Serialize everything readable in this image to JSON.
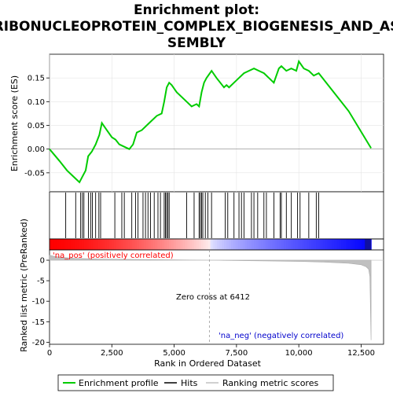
{
  "chart_data": {
    "type": "line",
    "title_lines": [
      "Enrichment plot:",
      "RIBONUCLEOPROTEIN_COMPLEX_BIOGENESIS_AND_AS",
      "SEMBLY"
    ],
    "xlabel": "Rank in Ordered Dataset",
    "es_panel": {
      "ylabel": "Enrichment score (ES)",
      "ylim": [
        -0.09,
        0.2
      ],
      "yticks": [
        -0.05,
        0.0,
        0.05,
        0.1,
        0.15
      ],
      "ytick_labels": [
        "-0.05",
        "0.00",
        "0.05",
        "0.10",
        "0.15"
      ]
    },
    "metric_panel": {
      "ylabel": "Ranked list metric (PreRanked)",
      "ylim": [
        -20.5,
        2.5
      ],
      "yticks": [
        0,
        -5,
        -10,
        -15,
        -20
      ],
      "ytick_labels": [
        "0",
        "-5",
        "-10",
        "-15",
        "-20"
      ]
    },
    "xlim": [
      0,
      13400
    ],
    "xticks": [
      0,
      2500,
      5000,
      7500,
      10000,
      12500
    ],
    "xtick_labels": [
      "0",
      "2,500",
      "5,000",
      "7,500",
      "10,000",
      "12,500"
    ],
    "enrichment_profile": {
      "x": [
        0,
        400,
        700,
        1000,
        1200,
        1300,
        1450,
        1550,
        1700,
        1850,
        2000,
        2100,
        2300,
        2500,
        2650,
        2800,
        3000,
        3200,
        3350,
        3500,
        3700,
        3900,
        4100,
        4300,
        4500,
        4600,
        4700,
        4800,
        4900,
        5100,
        5300,
        5500,
        5700,
        5900,
        6000,
        6100,
        6200,
        6300,
        6500,
        6700,
        7000,
        7100,
        7200,
        7400,
        7600,
        7800,
        8000,
        8200,
        8400,
        8600,
        8800,
        9000,
        9200,
        9300,
        9500,
        9700,
        9900,
        10000,
        10200,
        10400,
        10600,
        10800,
        12000,
        12900
      ],
      "y": [
        0.0,
        -0.025,
        -0.045,
        -0.06,
        -0.07,
        -0.06,
        -0.045,
        -0.015,
        -0.005,
        0.01,
        0.03,
        0.055,
        0.04,
        0.025,
        0.02,
        0.01,
        0.005,
        0.0,
        0.01,
        0.035,
        0.04,
        0.05,
        0.06,
        0.07,
        0.075,
        0.1,
        0.13,
        0.14,
        0.135,
        0.12,
        0.11,
        0.1,
        0.09,
        0.095,
        0.09,
        0.12,
        0.14,
        0.15,
        0.165,
        0.15,
        0.13,
        0.135,
        0.13,
        0.14,
        0.15,
        0.16,
        0.165,
        0.17,
        0.165,
        0.16,
        0.15,
        0.14,
        0.17,
        0.175,
        0.165,
        0.17,
        0.165,
        0.185,
        0.17,
        0.165,
        0.155,
        0.16,
        0.08,
        0.002
      ]
    },
    "hits": [
      650,
      1050,
      1250,
      1320,
      1380,
      1560,
      1650,
      1720,
      1850,
      1980,
      2050,
      2620,
      2900,
      3000,
      3300,
      3450,
      3550,
      3750,
      3850,
      3950,
      4050,
      4200,
      4350,
      4450,
      4600,
      4650,
      4700,
      4750,
      4800,
      5500,
      5800,
      6000,
      6050,
      6100,
      6150,
      6250,
      6350,
      6500,
      7050,
      7150,
      7400,
      7600,
      7700,
      7800,
      8100,
      8200,
      8350,
      8600,
      8700,
      9000,
      9250,
      9300,
      9500,
      9700,
      9950,
      10050,
      10400,
      10700,
      10800
    ],
    "metric": {
      "x": [
        0,
        200,
        500,
        1000,
        2000,
        3000,
        4000,
        5000,
        6000,
        6412,
        7000,
        8000,
        9000,
        10000,
        11000,
        12000,
        12500,
        12700,
        12800,
        12850,
        12900
      ],
      "y": [
        1.2,
        0.9,
        0.7,
        0.45,
        0.3,
        0.22,
        0.15,
        0.08,
        0.03,
        0.0,
        -0.05,
        -0.12,
        -0.2,
        -0.3,
        -0.45,
        -0.75,
        -1.1,
        -1.6,
        -2.2,
        -4.0,
        -19.5
      ]
    },
    "zero_cross": 6412,
    "zero_cross_label": "Zero cross at 6412",
    "na_pos_label": "'na_pos' (positively correlated)",
    "na_neg_label": "'na_neg' (negatively correlated)",
    "colors": {
      "profile": "#00cc00",
      "metric_fill": "#c0c0c0",
      "na_pos": "#ff0000",
      "na_neg": "#0000cc",
      "zero_cross_line": "#999999"
    },
    "legend": {
      "placement": "bottom",
      "items": [
        "Enrichment profile",
        "Hits",
        "Ranking metric scores"
      ]
    }
  }
}
